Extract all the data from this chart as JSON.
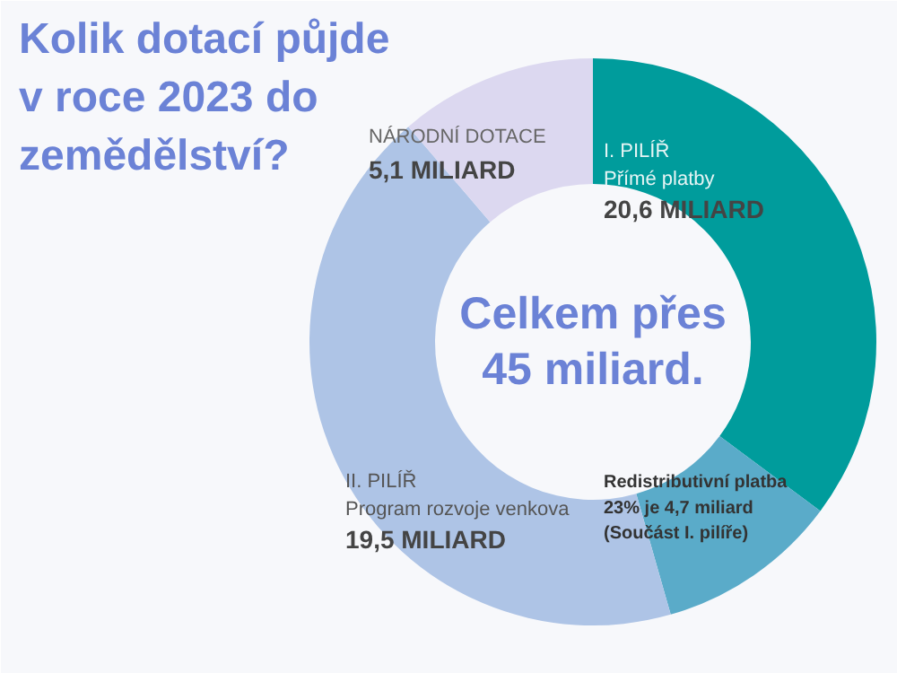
{
  "chart_data": {
    "type": "donut",
    "title": "Kolik dotací půjde v roce 2023 do zemědělství?",
    "categories": [
      "I. PILÍŘ\nPřímé platby",
      "Redistributivní platba\n23% je  4,7 miliard\n(Součást I. pilíře)",
      "II. PILÍŘ\nProgram rozvoje venkova",
      "NÁRODNÍ DOTACE"
    ],
    "values": [
      15.9,
      4.7,
      19.5,
      5.1
    ],
    "colors": [
      "#009c9c",
      "#5aabc9",
      "#aec4e6",
      "#dcd8f0"
    ],
    "value_labels": [
      null,
      null,
      "19,5 MILIARD",
      "5,1 MILIARD"
    ],
    "annotations": [
      "Celkem přes 45 miliard.",
      "20,6 MILIARD"
    ]
  }
}
